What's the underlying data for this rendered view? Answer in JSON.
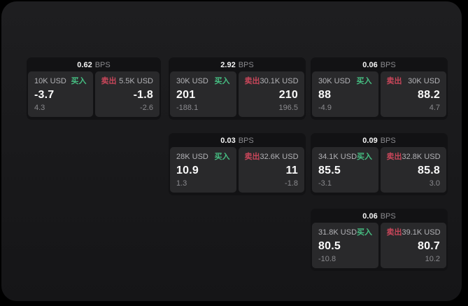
{
  "labels": {
    "bps_unit": "BPS",
    "buy": "买入",
    "sell": "卖出"
  },
  "colors": {
    "buy_green": "#46be82",
    "sell_red": "#c8465a",
    "muted": "#8a8a8e",
    "window_bg": "#1b1b1d",
    "card_bg": "#121214",
    "subpanel_bg": "#29292b"
  },
  "cards": [
    {
      "bps": "0.62",
      "buy": {
        "amount": "10K USD",
        "price": "-3.7",
        "change": "4.3"
      },
      "sell": {
        "amount": "5.5K USD",
        "price": "-1.8",
        "change": "-2.6"
      }
    },
    {
      "bps": "2.92",
      "buy": {
        "amount": "30K USD",
        "price": "201",
        "change": "-188.1"
      },
      "sell": {
        "amount": "30.1K USD",
        "price": "210",
        "change": "196.5"
      }
    },
    {
      "bps": "0.06",
      "buy": {
        "amount": "30K USD",
        "price": "88",
        "change": "-4.9"
      },
      "sell": {
        "amount": "30K USD",
        "price": "88.2",
        "change": "4.7"
      }
    },
    {
      "bps": "0.03",
      "buy": {
        "amount": "28K USD",
        "price": "10.9",
        "change": "1.3"
      },
      "sell": {
        "amount": "32.6K USD",
        "price": "11",
        "change": "-1.8"
      }
    },
    {
      "bps": "0.09",
      "buy": {
        "amount": "34.1K USD",
        "price": "85.5",
        "change": "-3.1"
      },
      "sell": {
        "amount": "32.8K USD",
        "price": "85.8",
        "change": "3.0"
      }
    },
    {
      "bps": "0.06",
      "buy": {
        "amount": "31.8K USD",
        "price": "80.5",
        "change": "-10.8"
      },
      "sell": {
        "amount": "39.1K USD",
        "price": "80.7",
        "change": "10.2"
      }
    }
  ]
}
